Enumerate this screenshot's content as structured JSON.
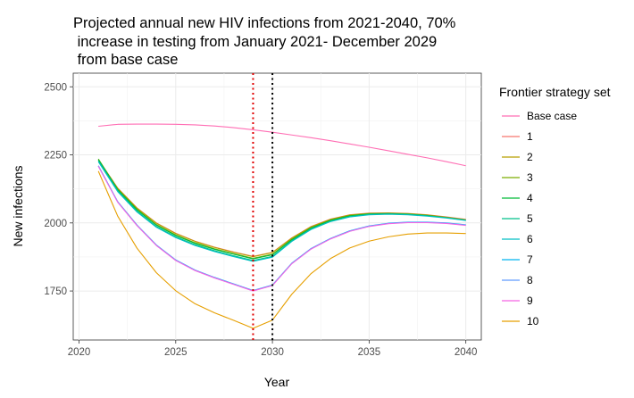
{
  "chart_data": {
    "type": "line",
    "title": [
      "Projected annual new HIV infections from 2021-2040, 70%",
      " increase in testing from January 2021- December 2029",
      " from base case"
    ],
    "xlabel": "Year",
    "ylabel": "New infections",
    "xlim": [
      2019.7,
      2040.8
    ],
    "ylim": [
      1570,
      2550
    ],
    "xticks": [
      2020,
      2025,
      2030,
      2035,
      2040
    ],
    "yticks": [
      1750,
      2000,
      2250,
      2500
    ],
    "grid": true,
    "legend_title": "Frontier strategy set",
    "legend_position": "right",
    "vlines": [
      {
        "x": 2029,
        "color": "#e00000",
        "style": "dotted"
      },
      {
        "x": 2030,
        "color": "#000000",
        "style": "dotted"
      }
    ],
    "x": [
      2021,
      2022,
      2023,
      2024,
      2025,
      2026,
      2027,
      2028,
      2029,
      2030,
      2031,
      2032,
      2033,
      2034,
      2035,
      2036,
      2037,
      2038,
      2039,
      2040
    ],
    "series": [
      {
        "name": "Base case",
        "color": "#ff6eb4",
        "values": [
          2355,
          2362,
          2363,
          2363,
          2362,
          2360,
          2356,
          2350,
          2342,
          2333,
          2323,
          2313,
          2302,
          2290,
          2278,
          2265,
          2252,
          2239,
          2225,
          2210
        ]
      },
      {
        "name": "1",
        "color": "#f8766d",
        "values": [
          2232,
          2128,
          2055,
          2000,
          1962,
          1933,
          1911,
          1893,
          1877,
          1892,
          1945,
          1987,
          2014,
          2030,
          2036,
          2037,
          2035,
          2030,
          2022,
          2013
        ]
      },
      {
        "name": "2",
        "color": "#b79f00",
        "values": [
          2232,
          2127,
          2054,
          1999,
          1961,
          1932,
          1910,
          1892,
          1876,
          1891,
          1944,
          1986,
          2013,
          2029,
          2035,
          2036,
          2034,
          2029,
          2021,
          2012
        ]
      },
      {
        "name": "3",
        "color": "#7cae00",
        "values": [
          2235,
          2124,
          2050,
          1994,
          1956,
          1927,
          1905,
          1887,
          1870,
          1885,
          1940,
          1983,
          2011,
          2027,
          2034,
          2035,
          2033,
          2028,
          2020,
          2011
        ]
      },
      {
        "name": "4",
        "color": "#00ba38",
        "values": [
          2233,
          2122,
          2048,
          1992,
          1954,
          1925,
          1903,
          1885,
          1868,
          1883,
          1938,
          1981,
          2009,
          2026,
          2033,
          2034,
          2032,
          2027,
          2019,
          2010
        ]
      },
      {
        "name": "5",
        "color": "#00c08b",
        "values": [
          2228,
          2118,
          2043,
          1987,
          1949,
          1920,
          1898,
          1879,
          1862,
          1877,
          1934,
          1978,
          2006,
          2023,
          2031,
          2033,
          2031,
          2026,
          2019,
          2010
        ]
      },
      {
        "name": "6",
        "color": "#00bfc4",
        "values": [
          2225,
          2115,
          2040,
          1984,
          1946,
          1917,
          1895,
          1876,
          1859,
          1874,
          1932,
          1976,
          2005,
          2022,
          2030,
          2032,
          2030,
          2025,
          2018,
          2009
        ]
      },
      {
        "name": "7",
        "color": "#00b4f0",
        "values": [
          2210,
          2078,
          1992,
          1919,
          1864,
          1827,
          1800,
          1776,
          1752,
          1772,
          1852,
          1906,
          1943,
          1971,
          1989,
          1999,
          2003,
          2003,
          2000,
          1993
        ]
      },
      {
        "name": "8",
        "color": "#619cff",
        "values": [
          2209,
          2077,
          1991,
          1918,
          1863,
          1826,
          1799,
          1775,
          1751,
          1771,
          1851,
          1905,
          1942,
          1970,
          1988,
          1998,
          2002,
          2002,
          1999,
          1992
        ]
      },
      {
        "name": "9",
        "color": "#f564e3",
        "values": [
          2208,
          2076,
          1990,
          1917,
          1862,
          1825,
          1798,
          1774,
          1750,
          1770,
          1850,
          1904,
          1941,
          1969,
          1987,
          1997,
          2001,
          2001,
          1998,
          1991
        ]
      },
      {
        "name": "10",
        "color": "#e69f00",
        "values": [
          2190,
          2025,
          1907,
          1817,
          1751,
          1703,
          1670,
          1642,
          1613,
          1643,
          1738,
          1814,
          1869,
          1908,
          1933,
          1949,
          1959,
          1963,
          1963,
          1961
        ]
      }
    ]
  }
}
